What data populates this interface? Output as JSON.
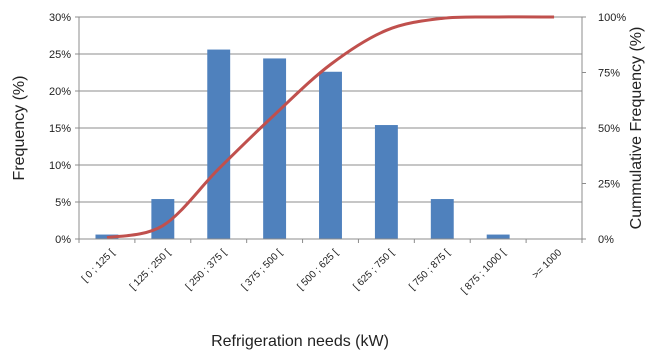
{
  "chart_data": {
    "type": "bar",
    "title": "",
    "xlabel": "Refrigeration needs (kW)",
    "ylabel": "Frequency (%)",
    "y2label": "Cummulative  Frequency (%)",
    "categories": [
      "[ 0 ; 125 [",
      "[ 125 ; 250 [",
      "[ 250 ; 375 [",
      "[ 375 ; 500 [",
      "[ 500 ; 625 [",
      "[ 625 ; 750 [",
      "[ 750 ; 875 [",
      "[ 875 ; 1000 [",
      ">= 1000"
    ],
    "ylim": [
      0,
      30
    ],
    "yticks": [
      "0%",
      "5%",
      "10%",
      "15%",
      "20%",
      "25%",
      "30%"
    ],
    "y2lim": [
      0,
      100
    ],
    "y2ticks": [
      "0%",
      "25%",
      "50%",
      "75%",
      "100%"
    ],
    "grid": true,
    "series": [
      {
        "type": "bar",
        "axis": "left",
        "color": "#4f81bd",
        "values": [
          0.6,
          5.4,
          25.6,
          24.4,
          22.6,
          15.4,
          5.4,
          0.6,
          0
        ]
      },
      {
        "type": "line",
        "axis": "right",
        "color": "#c0504d",
        "values": [
          0.6,
          6,
          31.6,
          56,
          78.6,
          94,
          99.4,
          100,
          100
        ]
      }
    ]
  }
}
